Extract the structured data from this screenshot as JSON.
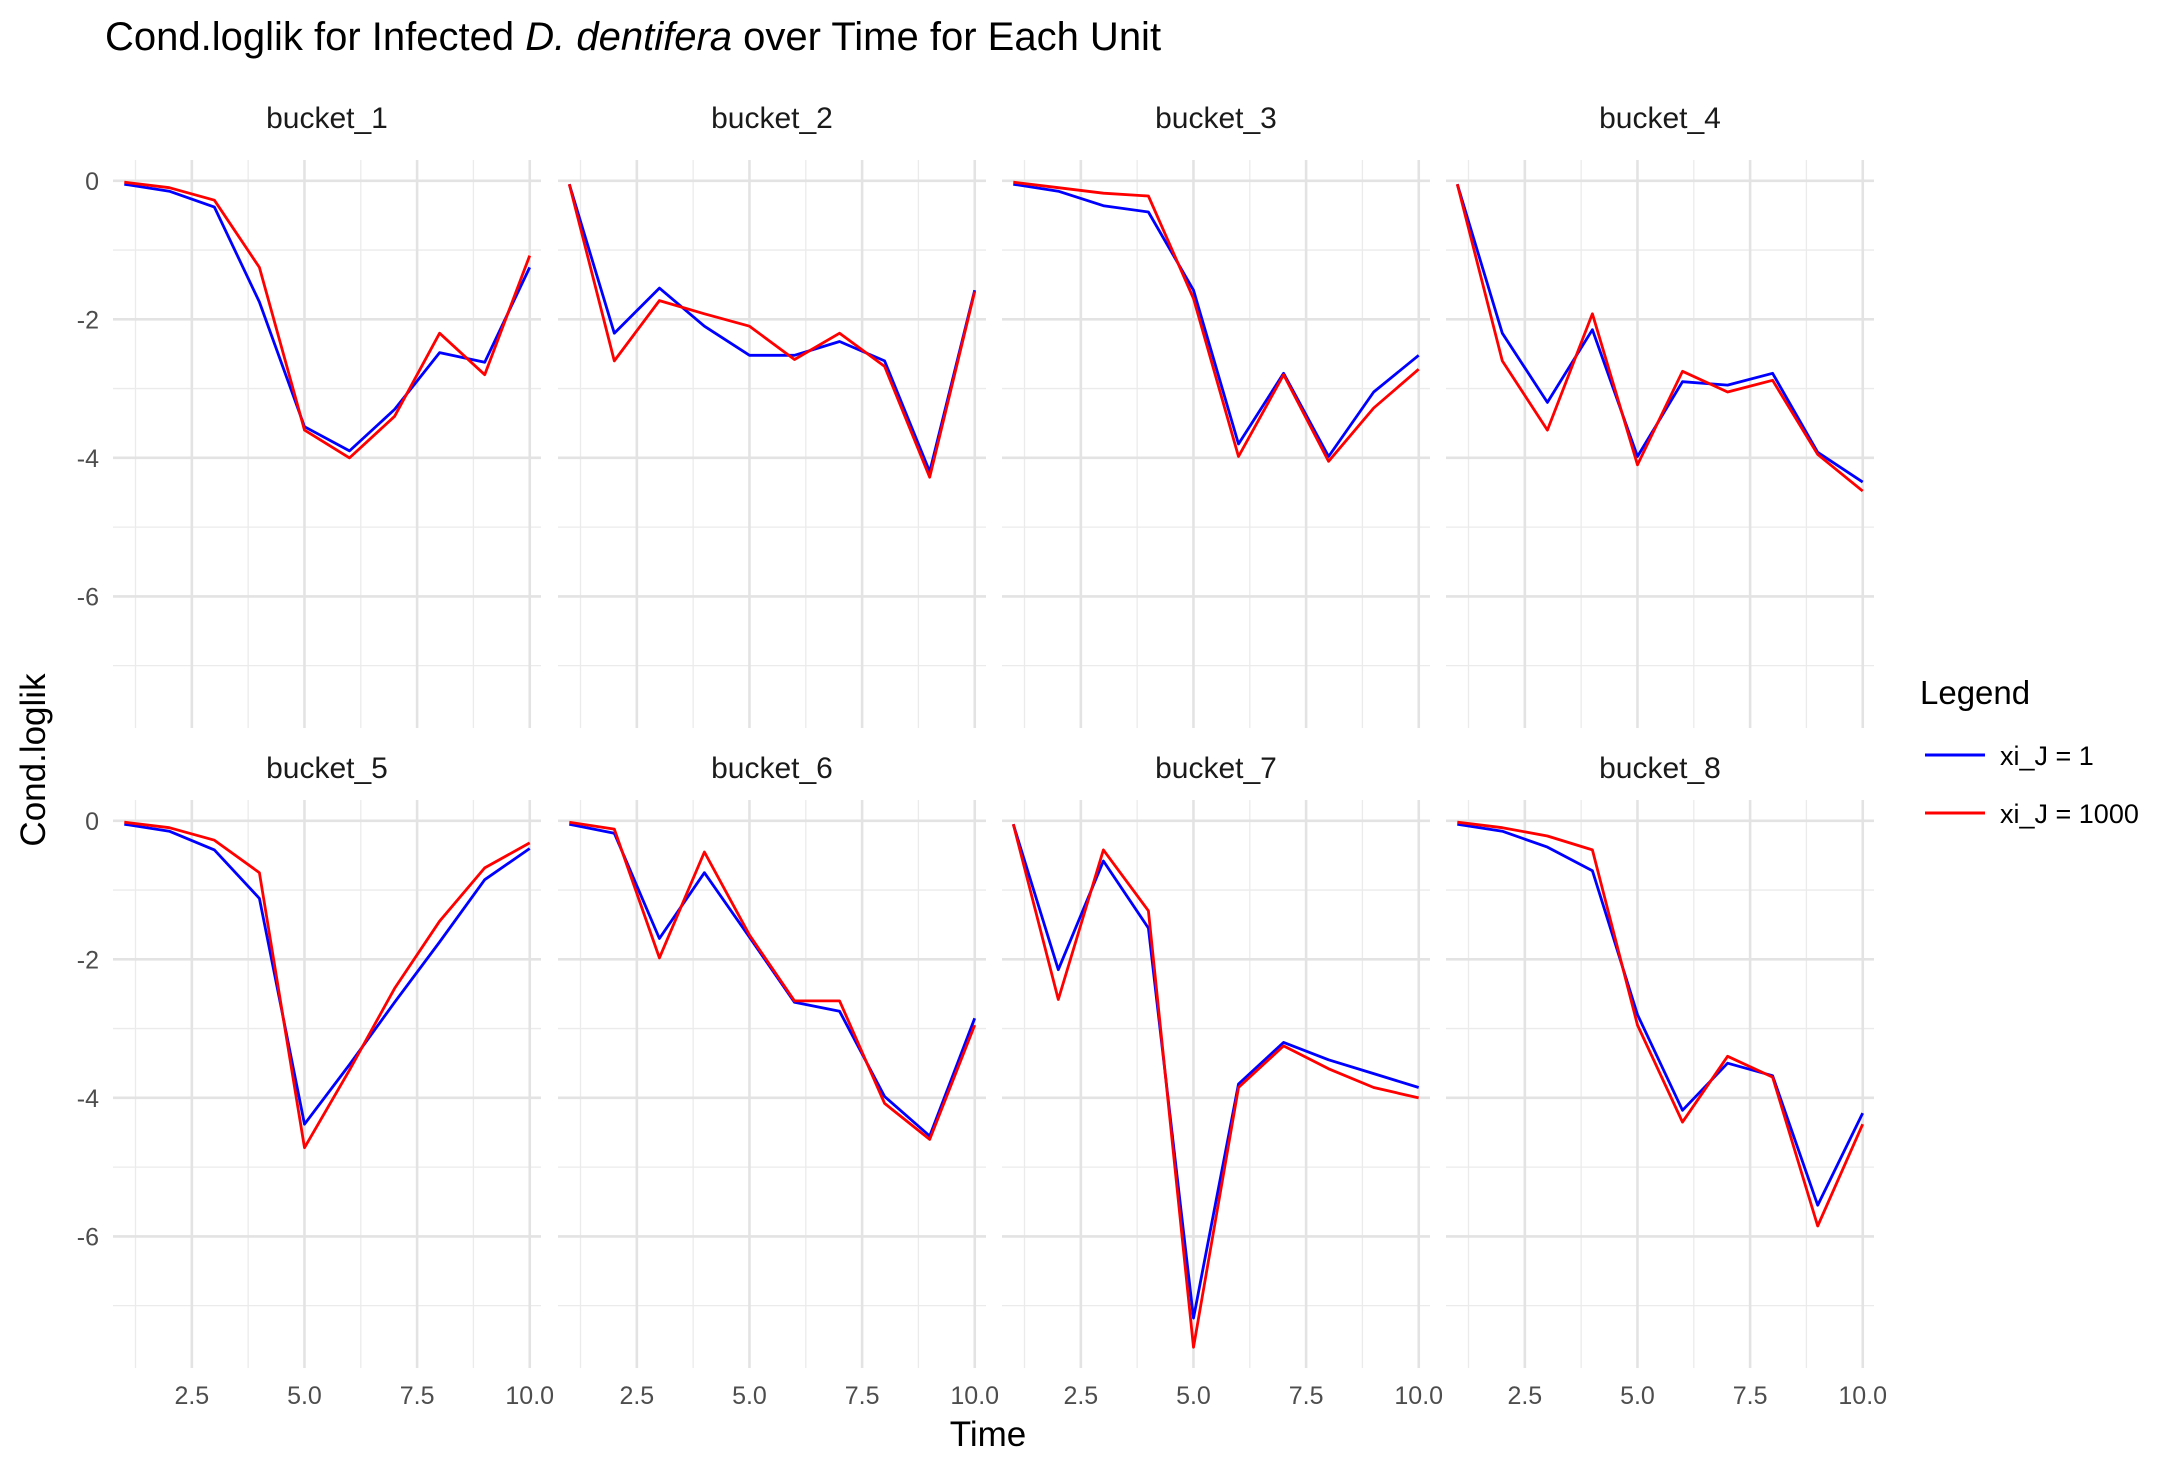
{
  "chart_data": {
    "type": "line",
    "title_prefix": "Cond.loglik for Infected ",
    "title_italic": "D. dentifera",
    "title_suffix": " over Time for Each Unit",
    "xlabel": "Time",
    "ylabel": "Cond.loglik",
    "xlim": [
      0.75,
      10.25
    ],
    "ylim": [
      -7.9,
      0.3
    ],
    "xticks": [
      2.5,
      5.0,
      7.5,
      10.0
    ],
    "xtick_labels": [
      "2.5",
      "5.0",
      "7.5",
      "10.0"
    ],
    "yticks": [
      0,
      -2,
      -4,
      -6
    ],
    "ytick_labels": [
      "0",
      "-2",
      "-4",
      "-6"
    ],
    "grid": true,
    "legend": {
      "title": "Legend",
      "placement": "right",
      "entries": [
        {
          "label": "xi_J = 1",
          "color": "#0000ff"
        },
        {
          "label": "xi_J = 1000",
          "color": "#ff0000"
        }
      ]
    },
    "x": [
      1,
      2,
      3,
      4,
      5,
      6,
      7,
      8,
      9,
      10
    ],
    "panels": [
      {
        "name": "bucket_1",
        "series": [
          {
            "name": "xi_J = 1",
            "color": "#0000ff",
            "values": [
              -0.05,
              -0.15,
              -0.38,
              -1.75,
              -3.55,
              -3.9,
              -3.3,
              -2.48,
              -2.62,
              -1.25
            ]
          },
          {
            "name": "xi_J = 1000",
            "color": "#ff0000",
            "values": [
              -0.02,
              -0.1,
              -0.28,
              -1.25,
              -3.6,
              -4.0,
              -3.4,
              -2.2,
              -2.8,
              -1.08
            ]
          }
        ]
      },
      {
        "name": "bucket_2",
        "series": [
          {
            "name": "xi_J = 1",
            "color": "#0000ff",
            "values": [
              -0.05,
              -2.2,
              -1.55,
              -2.1,
              -2.52,
              -2.52,
              -2.32,
              -2.6,
              -4.2,
              -1.58
            ]
          },
          {
            "name": "xi_J = 1000",
            "color": "#ff0000",
            "values": [
              -0.05,
              -2.6,
              -1.73,
              -1.92,
              -2.1,
              -2.58,
              -2.2,
              -2.68,
              -4.28,
              -1.6
            ]
          }
        ]
      },
      {
        "name": "bucket_3",
        "series": [
          {
            "name": "xi_J = 1",
            "color": "#0000ff",
            "values": [
              -0.05,
              -0.15,
              -0.36,
              -0.45,
              -1.58,
              -3.8,
              -2.78,
              -3.98,
              -3.05,
              -2.52
            ]
          },
          {
            "name": "xi_J = 1000",
            "color": "#ff0000",
            "values": [
              -0.02,
              -0.1,
              -0.18,
              -0.22,
              -1.7,
              -3.98,
              -2.8,
              -4.05,
              -3.28,
              -2.72
            ]
          }
        ]
      },
      {
        "name": "bucket_4",
        "series": [
          {
            "name": "xi_J = 1",
            "color": "#0000ff",
            "values": [
              -0.05,
              -2.2,
              -3.2,
              -2.15,
              -3.98,
              -2.9,
              -2.95,
              -2.78,
              -3.92,
              -4.35
            ]
          },
          {
            "name": "xi_J = 1000",
            "color": "#ff0000",
            "values": [
              -0.05,
              -2.6,
              -3.6,
              -1.92,
              -4.1,
              -2.75,
              -3.05,
              -2.88,
              -3.95,
              -4.48
            ]
          }
        ]
      },
      {
        "name": "bucket_5",
        "series": [
          {
            "name": "xi_J = 1",
            "color": "#0000ff",
            "values": [
              -0.05,
              -0.15,
              -0.42,
              -1.12,
              -4.38,
              -3.52,
              -2.62,
              -1.75,
              -0.85,
              -0.4
            ]
          },
          {
            "name": "xi_J = 1000",
            "color": "#ff0000",
            "values": [
              -0.02,
              -0.1,
              -0.28,
              -0.75,
              -4.72,
              -3.6,
              -2.42,
              -1.45,
              -0.68,
              -0.32
            ]
          }
        ]
      },
      {
        "name": "bucket_6",
        "series": [
          {
            "name": "xi_J = 1",
            "color": "#0000ff",
            "values": [
              -0.05,
              -0.18,
              -1.7,
              -0.75,
              -1.68,
              -2.62,
              -2.75,
              -3.98,
              -4.55,
              -2.85
            ]
          },
          {
            "name": "xi_J = 1000",
            "color": "#ff0000",
            "values": [
              -0.02,
              -0.12,
              -1.98,
              -0.45,
              -1.65,
              -2.6,
              -2.6,
              -4.08,
              -4.6,
              -2.95
            ]
          }
        ]
      },
      {
        "name": "bucket_7",
        "series": [
          {
            "name": "xi_J = 1",
            "color": "#0000ff",
            "values": [
              -0.05,
              -2.15,
              -0.58,
              -1.55,
              -7.18,
              -3.8,
              -3.2,
              -3.45,
              -3.65,
              -3.85
            ]
          },
          {
            "name": "xi_J = 1000",
            "color": "#ff0000",
            "values": [
              -0.05,
              -2.58,
              -0.42,
              -1.3,
              -7.6,
              -3.85,
              -3.25,
              -3.58,
              -3.85,
              -4.0
            ]
          }
        ]
      },
      {
        "name": "bucket_8",
        "series": [
          {
            "name": "xi_J = 1",
            "color": "#0000ff",
            "values": [
              -0.05,
              -0.15,
              -0.38,
              -0.72,
              -2.8,
              -4.18,
              -3.5,
              -3.68,
              -5.55,
              -4.22
            ]
          },
          {
            "name": "xi_J = 1000",
            "color": "#ff0000",
            "values": [
              -0.02,
              -0.1,
              -0.22,
              -0.42,
              -2.95,
              -4.35,
              -3.4,
              -3.7,
              -5.85,
              -4.38
            ]
          }
        ]
      }
    ]
  }
}
